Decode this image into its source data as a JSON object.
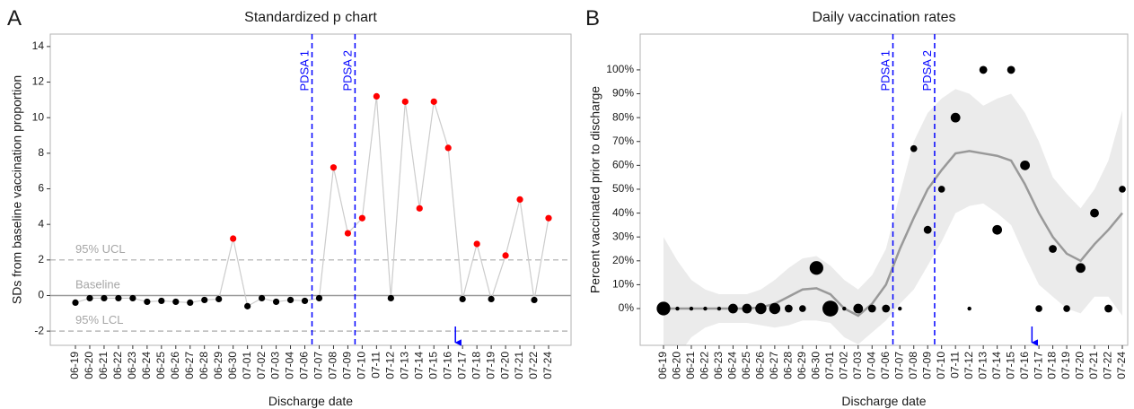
{
  "chart_data": [
    {
      "type": "line",
      "panel_label": "A",
      "title": "Standardized p chart",
      "x_label": "Discharge date",
      "y_label": "SDs from baseline vaccination proportion",
      "categories": [
        "06-19",
        "06-20",
        "06-21",
        "06-22",
        "06-23",
        "06-24",
        "06-25",
        "06-26",
        "06-27",
        "06-28",
        "06-29",
        "06-30",
        "07-01",
        "07-02",
        "07-03",
        "07-04",
        "07-06",
        "07-07",
        "07-08",
        "07-09",
        "07-10",
        "07-11",
        "07-12",
        "07-13",
        "07-14",
        "07-15",
        "07-16",
        "07-17",
        "07-18",
        "07-19",
        "07-20",
        "07-21",
        "07-22",
        "07-24"
      ],
      "values": [
        -0.4,
        -0.15,
        -0.15,
        -0.15,
        -0.15,
        -0.35,
        -0.3,
        -0.35,
        -0.4,
        -0.25,
        -0.2,
        3.2,
        -0.6,
        -0.15,
        -0.35,
        -0.25,
        -0.3,
        -0.15,
        7.2,
        3.5,
        4.35,
        11.2,
        -0.15,
        10.9,
        4.9,
        10.9,
        8.3,
        -0.2,
        2.9,
        -0.2,
        2.25,
        5.4,
        -0.25,
        4.35
      ],
      "line_color": "#cccccc",
      "point_color": "#000000",
      "signal_color": "#ff0000",
      "ylim": [
        -2.8,
        14.7
      ],
      "yticks": [
        -2,
        0,
        2,
        4,
        6,
        8,
        10,
        12,
        14
      ],
      "ref_lines": [
        {
          "label": "95% UCL",
          "value": 2,
          "dashed": true
        },
        {
          "label": "Baseline",
          "value": 0,
          "dashed": false
        },
        {
          "label": "95% LCL",
          "value": -2,
          "dashed": true
        }
      ],
      "vlines": [
        {
          "label": "PDSA 1",
          "x": 16.5
        },
        {
          "label": "PDSA 2",
          "x": 19.5
        }
      ],
      "vline_color": "#0000ff",
      "arrow_x": 26.5
    },
    {
      "type": "scatter",
      "panel_label": "B",
      "title": "Daily vaccination rates",
      "x_label": "Discharge date",
      "y_label": "Percent vaccinated prior to discharge",
      "categories": [
        "06-19",
        "06-20",
        "06-21",
        "06-22",
        "06-23",
        "06-24",
        "06-25",
        "06-26",
        "06-27",
        "06-28",
        "06-29",
        "06-30",
        "07-01",
        "07-02",
        "07-03",
        "07-04",
        "07-06",
        "07-07",
        "07-08",
        "07-09",
        "07-10",
        "07-11",
        "07-12",
        "07-13",
        "07-14",
        "07-15",
        "07-16",
        "07-17",
        "07-18",
        "07-19",
        "07-20",
        "07-21",
        "07-22",
        "07-24"
      ],
      "values": [
        0,
        0,
        0,
        0,
        0,
        0,
        0,
        0,
        0,
        0,
        0,
        17,
        0,
        0,
        0,
        0,
        0,
        0,
        67,
        33,
        50,
        80,
        0,
        100,
        33,
        100,
        60,
        0,
        25,
        0,
        17,
        40,
        0,
        50
      ],
      "sizes": [
        12,
        1,
        1,
        1,
        1,
        6,
        6,
        8,
        8,
        4,
        3,
        12,
        16,
        1,
        6,
        4,
        4,
        1,
        3,
        4,
        3,
        6,
        1,
        4,
        6,
        4,
        6,
        3,
        4,
        3,
        6,
        5,
        4,
        3
      ],
      "smooth": [
        0,
        0,
        0,
        0,
        0,
        0,
        0,
        0.5,
        2,
        5,
        8,
        8.5,
        6,
        0,
        -3,
        2,
        10,
        25,
        38,
        50,
        58,
        65,
        66,
        65,
        64,
        62,
        52,
        40,
        30,
        23,
        20,
        27,
        33,
        40
      ],
      "band_low": [
        -30,
        -20,
        -12,
        -8,
        -6,
        -6,
        -6,
        -7,
        -8,
        -7,
        -5,
        -5,
        -6,
        -12,
        -15,
        -10,
        -5,
        2,
        8,
        18,
        28,
        40,
        43,
        44,
        40,
        35,
        22,
        10,
        5,
        0,
        -2,
        5,
        5,
        -3
      ],
      "band_high": [
        30,
        20,
        12,
        8,
        6,
        6,
        6,
        8,
        12,
        17,
        21,
        22,
        18,
        12,
        8,
        14,
        25,
        48,
        70,
        82,
        88,
        92,
        90,
        85,
        88,
        90,
        82,
        70,
        55,
        48,
        42,
        50,
        62,
        83
      ],
      "point_color": "#000000",
      "smooth_color": "#999999",
      "band_color": "#ebebeb",
      "ylim": [
        -15.4,
        115
      ],
      "yticks": [
        {
          "value": 0,
          "label": "0%"
        },
        {
          "value": 10,
          "label": "10%"
        },
        {
          "value": 20,
          "label": "20%"
        },
        {
          "value": 30,
          "label": "30%"
        },
        {
          "value": 40,
          "label": "40%"
        },
        {
          "value": 50,
          "label": "50%"
        },
        {
          "value": 60,
          "label": "60%"
        },
        {
          "value": 70,
          "label": "70%"
        },
        {
          "value": 80,
          "label": "80%"
        },
        {
          "value": 90,
          "label": "90%"
        },
        {
          "value": 100,
          "label": "100%"
        }
      ],
      "vlines": [
        {
          "label": "PDSA 1",
          "x": 16.5
        },
        {
          "label": "PDSA 2",
          "x": 19.5
        }
      ],
      "vline_color": "#0000ff",
      "arrow_x": 26.5
    }
  ]
}
